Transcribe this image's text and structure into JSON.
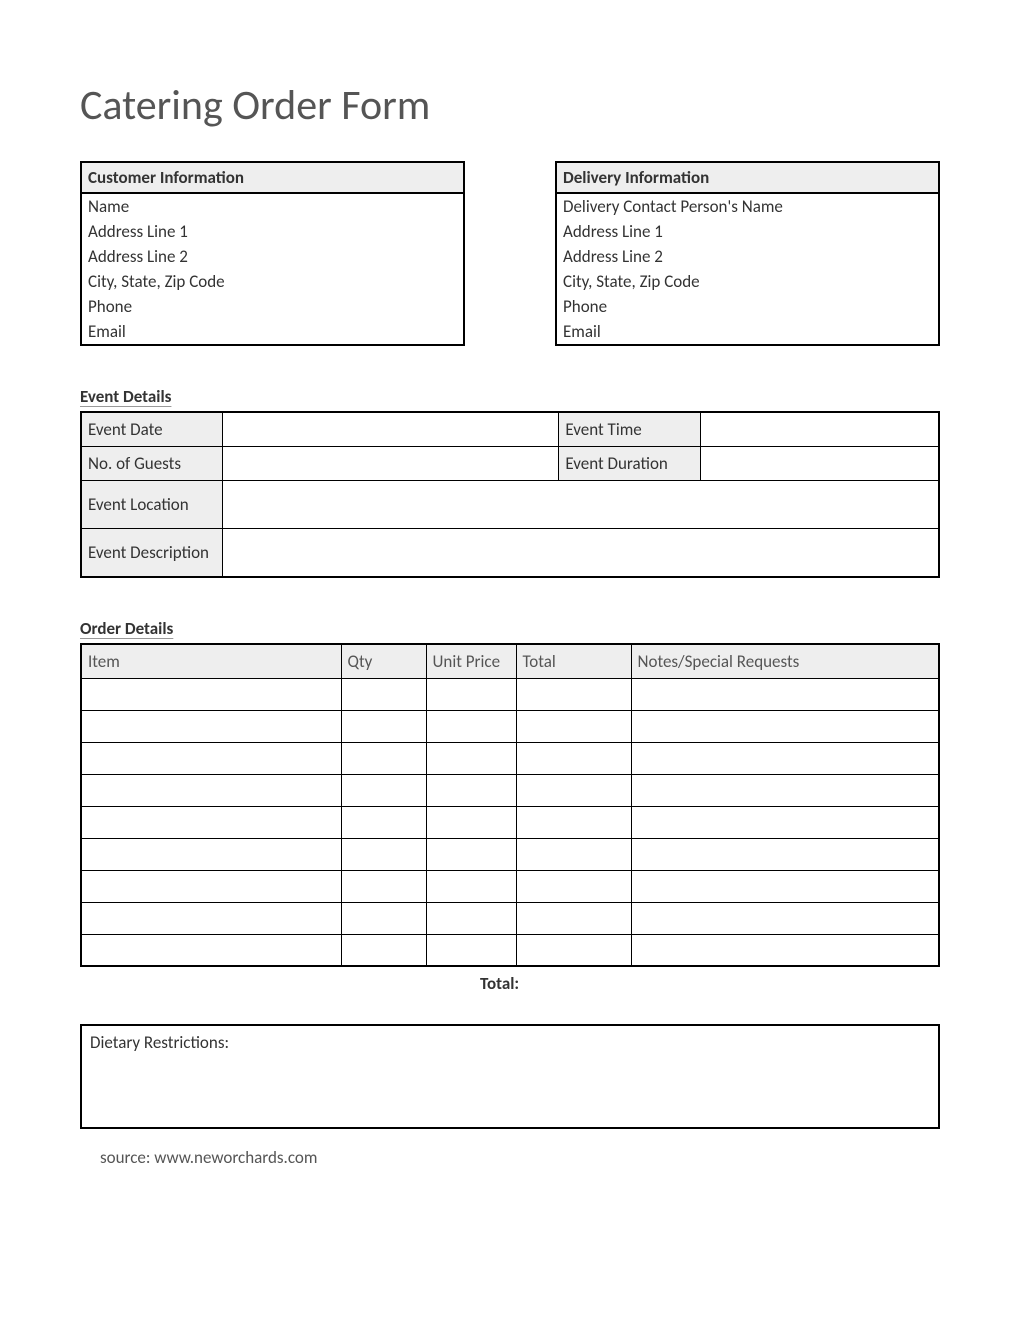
{
  "title": "Catering Order Form",
  "customer": {
    "header": "Customer Information",
    "fields": [
      "Name",
      "Address Line 1",
      "Address Line 2",
      "City, State, Zip Code",
      "Phone",
      "Email"
    ]
  },
  "delivery": {
    "header": "Delivery Information",
    "fields": [
      "Delivery Contact Person's Name",
      "Address Line 1",
      "Address Line 2",
      "City, State, Zip Code",
      "Phone",
      "Email"
    ]
  },
  "event_details": {
    "section_title": "Event Details",
    "labels": {
      "date": "Event Date",
      "time": "Event Time",
      "guests": "No. of Guests",
      "duration": "Event Duration",
      "location": "Event Location",
      "description": "Event Description"
    }
  },
  "order_details": {
    "section_title": "Order Details",
    "columns": [
      "Item",
      "Qty",
      "Unit Price",
      "Total",
      "Notes/Special Requests"
    ],
    "row_count": 9,
    "total_label": "Total:"
  },
  "dietary_label": "Dietary Restrictions:",
  "source": "source: www.neworchards.com",
  "colors": {
    "header_bg": "#eeeeee",
    "border": "#000000",
    "text": "#333333",
    "title_text": "#555555"
  }
}
